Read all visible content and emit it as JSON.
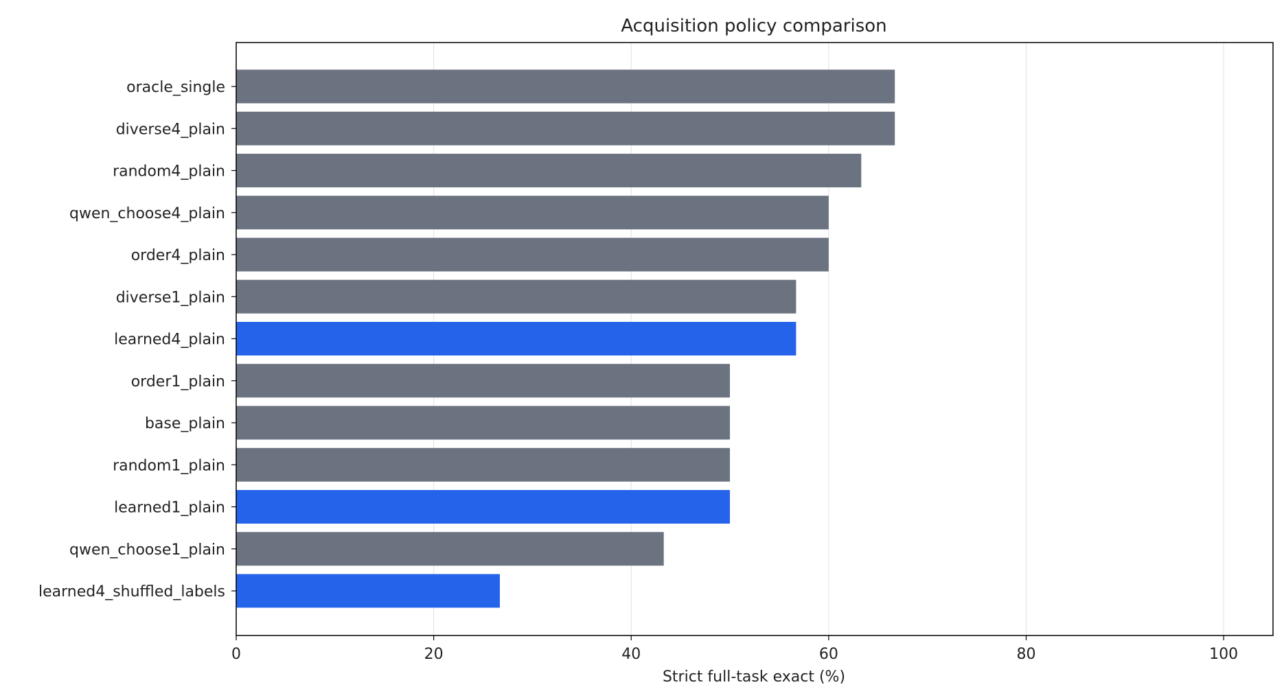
{
  "chart_data": {
    "type": "bar",
    "orientation": "horizontal",
    "title": "Acquisition policy comparison",
    "xlabel": "Strict full-task exact (%)",
    "ylabel": "",
    "xlim": [
      0,
      105
    ],
    "xticks": [
      "0",
      "20",
      "40",
      "60",
      "80",
      "100"
    ],
    "xtick_values": [
      0,
      20,
      40,
      60,
      80,
      100
    ],
    "grid": "vertical",
    "colors": {
      "baseline": "#6b7280",
      "learned": "#2563eb",
      "grid": "#e5e5e5",
      "axis": "#000000"
    },
    "categories": [
      "oracle_single",
      "diverse4_plain",
      "random4_plain",
      "qwen_choose4_plain",
      "order4_plain",
      "diverse1_plain",
      "learned4_plain",
      "order1_plain",
      "base_plain",
      "random1_plain",
      "learned1_plain",
      "qwen_choose1_plain",
      "learned4_shuffled_labels"
    ],
    "values": [
      66.7,
      66.7,
      63.3,
      60.0,
      60.0,
      56.7,
      56.7,
      50.0,
      50.0,
      50.0,
      50.0,
      43.3,
      26.7
    ],
    "highlight": [
      false,
      false,
      false,
      false,
      false,
      false,
      true,
      false,
      false,
      false,
      true,
      false,
      true
    ]
  }
}
